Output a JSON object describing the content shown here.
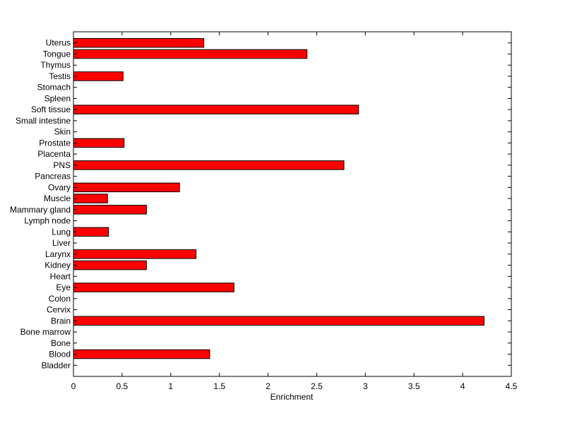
{
  "chart_data": {
    "type": "bar",
    "orientation": "horizontal",
    "title": "",
    "xlabel": "Enrichment",
    "ylabel": "",
    "xlim": [
      0,
      4.5
    ],
    "xticks": [
      "0",
      "0.5",
      "1",
      "1.5",
      "2",
      "2.5",
      "3",
      "3.5",
      "4",
      "4.5"
    ],
    "grid": false,
    "legend": "none",
    "bar_color": "#ff0000",
    "categories": [
      "Bladder",
      "Blood",
      "Bone",
      "Bone marrow",
      "Brain",
      "Cervix",
      "Colon",
      "Eye",
      "Heart",
      "Kidney",
      "Larynx",
      "Liver",
      "Lung",
      "Lymph node",
      "Mammary gland",
      "Muscle",
      "Ovary",
      "Pancreas",
      "PNS",
      "Placenta",
      "Prostate",
      "Skin",
      "Small intestine",
      "Soft tissue",
      "Spleen",
      "Stomach",
      "Testis",
      "Thymus",
      "Tongue",
      "Uterus"
    ],
    "values": [
      0,
      1.4,
      0,
      0,
      4.22,
      0,
      0,
      1.65,
      0,
      0.75,
      1.26,
      0,
      0.36,
      0,
      0.75,
      0.35,
      1.09,
      0,
      2.78,
      0,
      0.52,
      0,
      0,
      2.93,
      0,
      0,
      0.51,
      0,
      2.4,
      1.34
    ]
  }
}
